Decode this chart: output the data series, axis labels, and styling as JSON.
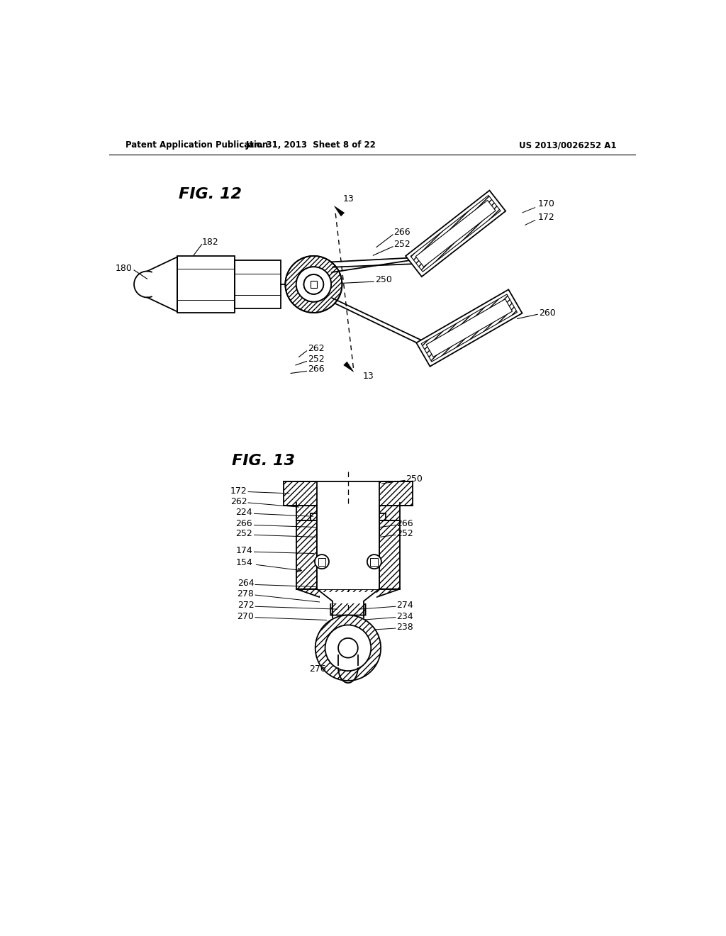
{
  "header_left": "Patent Application Publication",
  "header_center": "Jan. 31, 2013  Sheet 8 of 22",
  "header_right": "US 2013/0026252 A1",
  "fig12_label": "FIG. 12",
  "fig13_label": "FIG. 13",
  "bg_color": "#ffffff",
  "line_color": "#000000"
}
